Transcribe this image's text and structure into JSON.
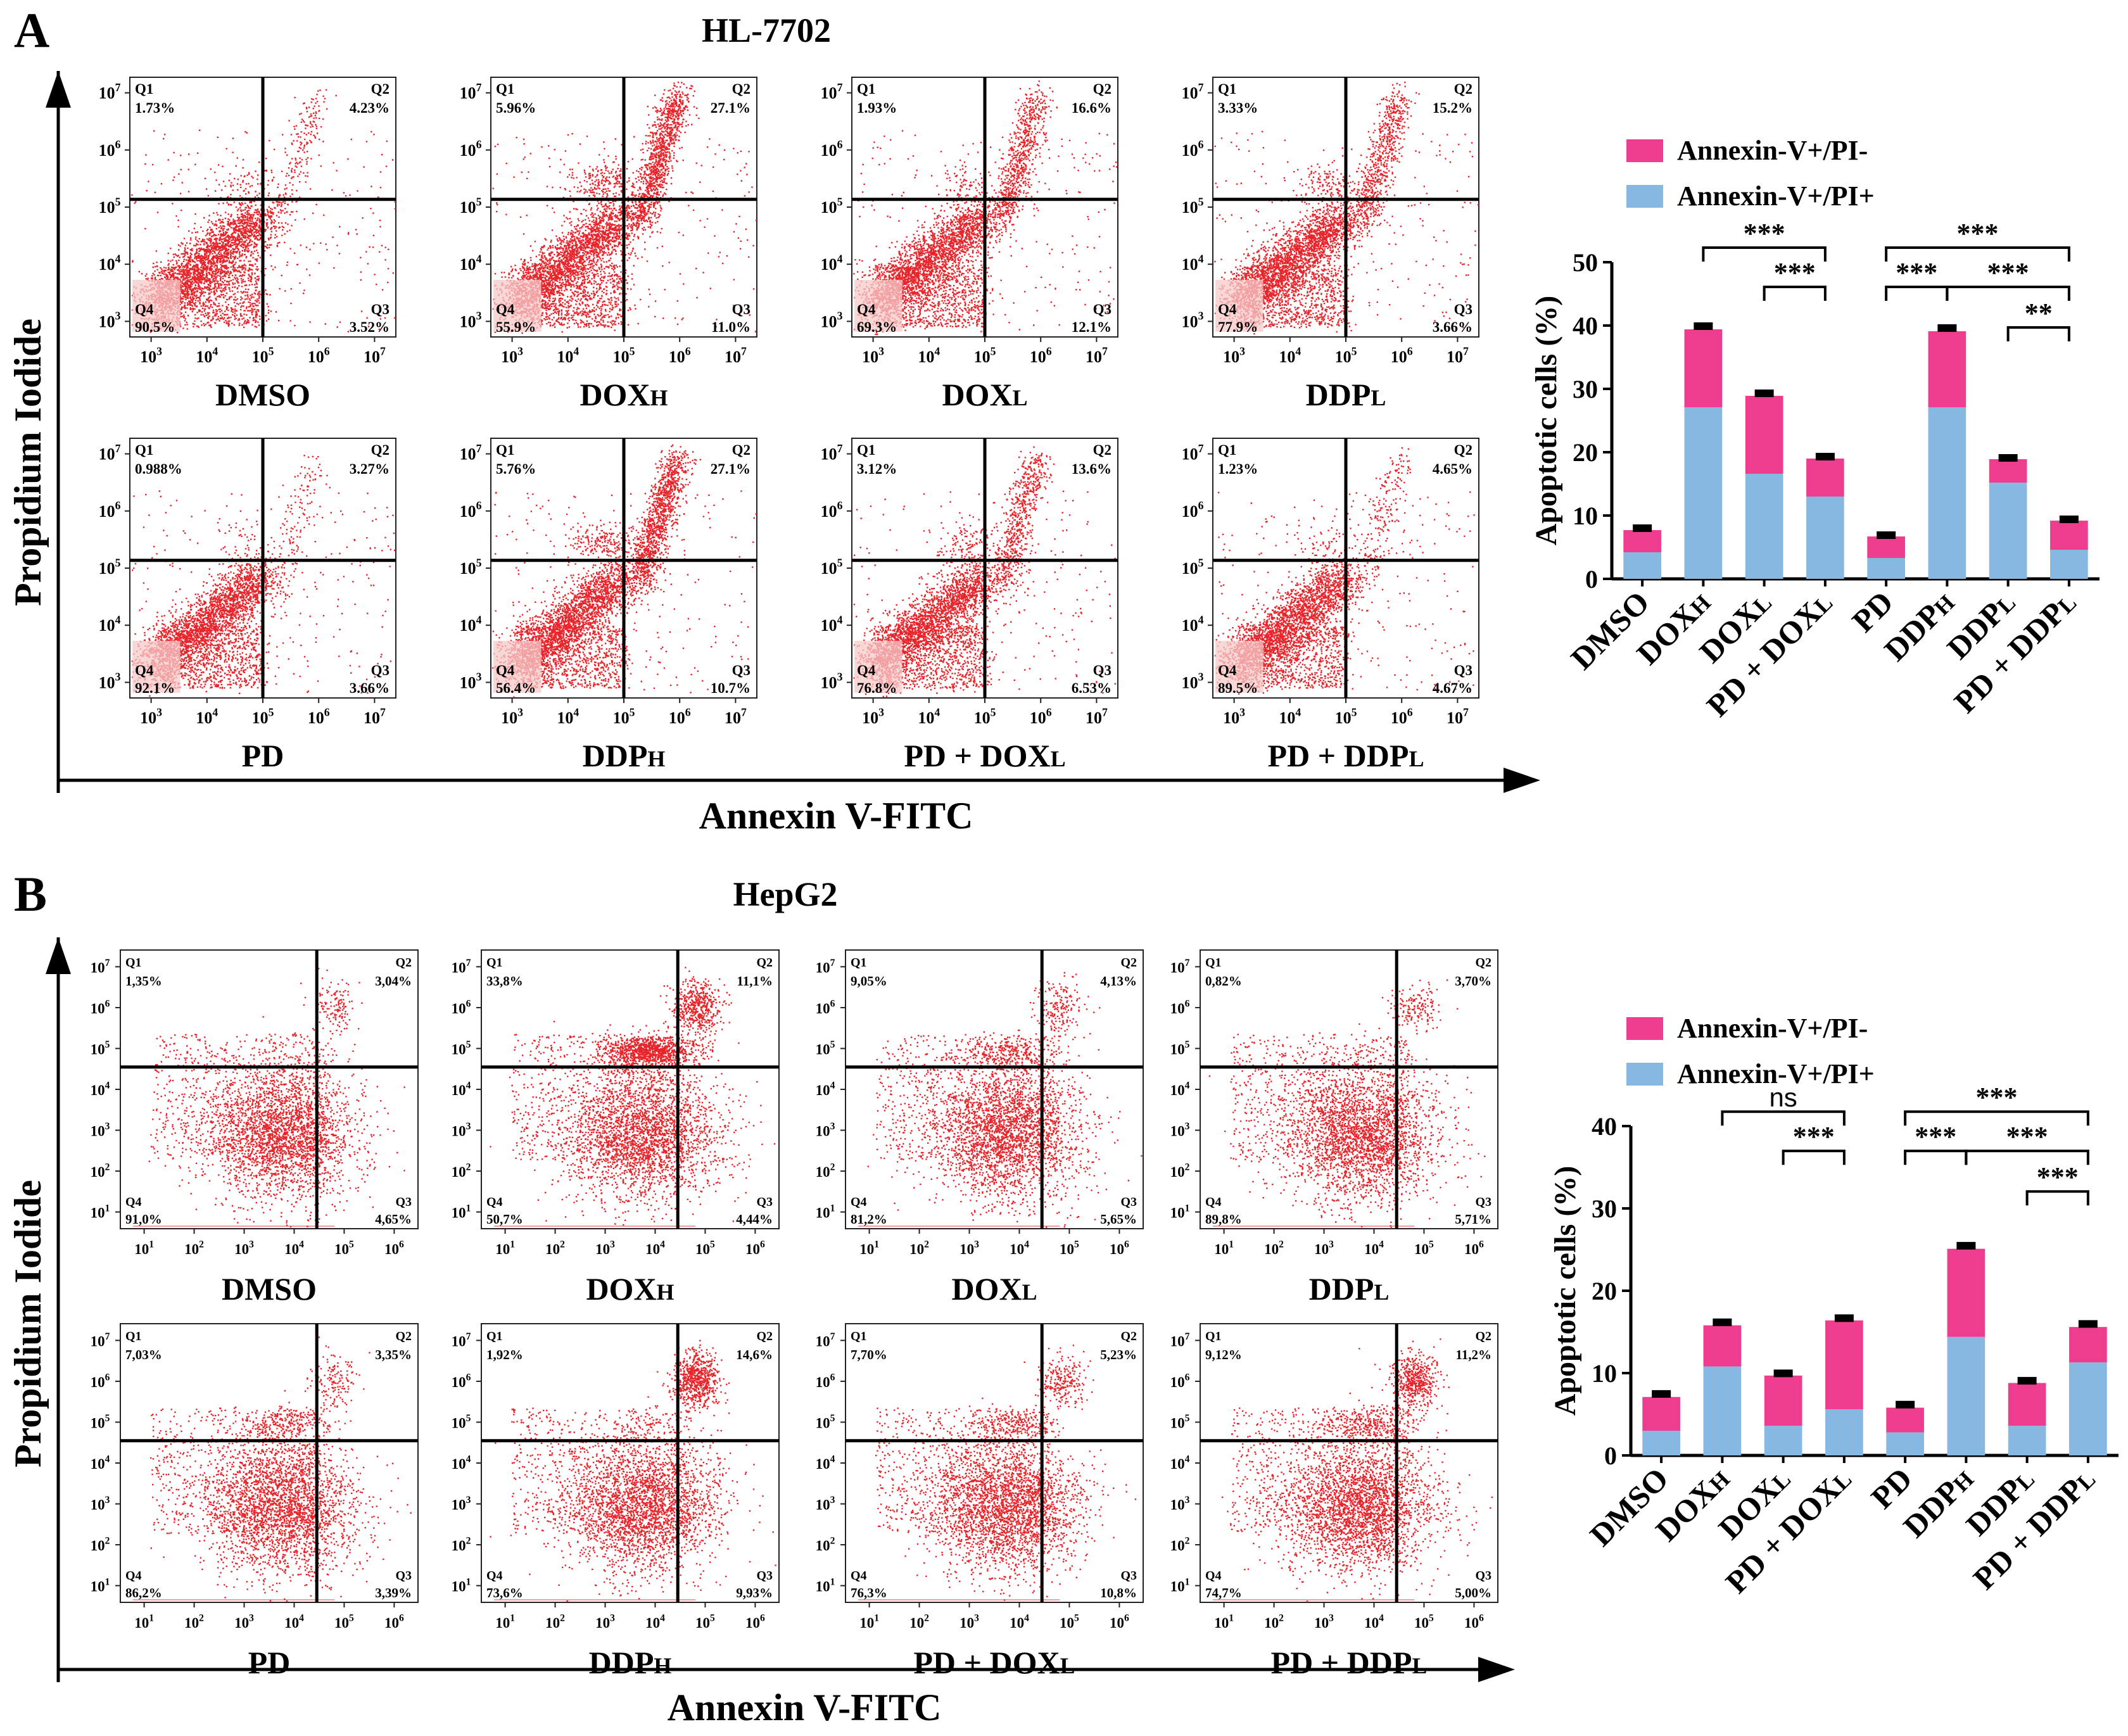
{
  "chart_data": [
    {
      "panel_label": "A",
      "title": "HL-7702",
      "xlabel": "Annexin V-FITC",
      "ylabel": "Propidium Iodide",
      "flow_plots": [
        {
          "label": "DMSO",
          "label_main": "DMSO",
          "label_sub": "",
          "quadrants": {
            "Q1": "1.73%",
            "Q2": "4.23%",
            "Q3": "3.52%",
            "Q4": "90.5%"
          }
        },
        {
          "label": "DOXH",
          "label_main": "DOX",
          "label_sub": "H",
          "quadrants": {
            "Q1": "5.96%",
            "Q2": "27.1%",
            "Q3": "11.0%",
            "Q4": "55.9%"
          }
        },
        {
          "label": "DOXL",
          "label_main": "DOX",
          "label_sub": "L",
          "quadrants": {
            "Q1": "1.93%",
            "Q2": "16.6%",
            "Q3": "12.1%",
            "Q4": "69.3%"
          }
        },
        {
          "label": "DDPL",
          "label_main": "DDP",
          "label_sub": "L",
          "quadrants": {
            "Q1": "3.33%",
            "Q2": "15.2%",
            "Q3": "3.66%",
            "Q4": "77.9%"
          }
        },
        {
          "label": "PD",
          "label_main": "PD",
          "label_sub": "",
          "quadrants": {
            "Q1": "0.988%",
            "Q2": "3.27%",
            "Q3": "3.66%",
            "Q4": "92.1%"
          }
        },
        {
          "label": "DDPH",
          "label_main": "DDP",
          "label_sub": "H",
          "quadrants": {
            "Q1": "5.76%",
            "Q2": "27.1%",
            "Q3": "10.7%",
            "Q4": "56.4%"
          }
        },
        {
          "label": "PD + DOXL",
          "label_main": "PD + DOX",
          "label_sub": "L",
          "quadrants": {
            "Q1": "3.12%",
            "Q2": "13.6%",
            "Q3": "6.53%",
            "Q4": "76.8%"
          }
        },
        {
          "label": "PD + DDPL",
          "label_main": "PD + DDP",
          "label_sub": "L",
          "quadrants": {
            "Q1": "1.23%",
            "Q2": "4.65%",
            "Q3": "4.67%",
            "Q4": "89.5%"
          }
        }
      ],
      "flow_axis": {
        "x_ticks": [
          "10^3",
          "10^4",
          "10^5",
          "10^6",
          "10^7"
        ],
        "y_ticks": [
          "10^3",
          "10^4",
          "10^5",
          "10^6",
          "10^7"
        ]
      },
      "bar_chart": {
        "type": "bar",
        "stacked": true,
        "ylabel": "Apoptotic cells (%)",
        "ylim": [
          0,
          50
        ],
        "yticks": [
          0,
          10,
          20,
          30,
          40,
          50
        ],
        "categories": [
          {
            "main": "DMSO",
            "sub": ""
          },
          {
            "main": "DOX",
            "sub": "H"
          },
          {
            "main": "DOX",
            "sub": "L"
          },
          {
            "main": "PD + DOX",
            "sub": "L"
          },
          {
            "main": "PD",
            "sub": ""
          },
          {
            "main": "DDP",
            "sub": "H"
          },
          {
            "main": "DDP",
            "sub": "L"
          },
          {
            "main": "PD + DDP",
            "sub": "L"
          }
        ],
        "series": [
          {
            "name": "Annexin-V+/PI+",
            "color": "#86b8e2",
            "values": [
              4.2,
              27.1,
              16.6,
              13.0,
              3.3,
              27.1,
              15.2,
              4.6
            ]
          },
          {
            "name": "Annexin-V+/PI-",
            "color": "#ee3d8f",
            "values": [
              3.5,
              12.3,
              12.3,
              6.0,
              3.4,
              12.0,
              3.7,
              4.6
            ]
          }
        ],
        "error": [
          0.6,
          0.8,
          0.7,
          0.6,
          0.5,
          0.8,
          0.5,
          0.5
        ],
        "legend": [
          "Annexin-V+/PI-",
          "Annexin-V+/PI+"
        ],
        "significance": [
          {
            "from": 1,
            "to": 3,
            "label": "***",
            "level": 0
          },
          {
            "from": 2,
            "to": 3,
            "label": "***",
            "level": 1
          },
          {
            "from": 4,
            "to": 7,
            "label": "***",
            "level": 0
          },
          {
            "from": 4,
            "to": 5,
            "label": "***",
            "level": 1
          },
          {
            "from": 5,
            "to": 7,
            "label": "***",
            "level": 1
          },
          {
            "from": 6,
            "to": 7,
            "label": "**",
            "level": 2
          }
        ]
      }
    },
    {
      "panel_label": "B",
      "title": "HepG2",
      "xlabel": "Annexin V-FITC",
      "ylabel": "Propidium Iodide",
      "flow_plots": [
        {
          "label": "DMSO",
          "label_main": "DMSO",
          "label_sub": "",
          "quadrants": {
            "Q1": "1,35%",
            "Q2": "3,04%",
            "Q3": "4,65%",
            "Q4": "91,0%"
          }
        },
        {
          "label": "DOXH",
          "label_main": "DOX",
          "label_sub": "H",
          "quadrants": {
            "Q1": "33,8%",
            "Q2": "11,1%",
            "Q3": "4,44%",
            "Q4": "50,7%"
          }
        },
        {
          "label": "DOXL",
          "label_main": "DOX",
          "label_sub": "L",
          "quadrants": {
            "Q1": "9,05%",
            "Q2": "4,13%",
            "Q3": "5,65%",
            "Q4": "81,2%"
          }
        },
        {
          "label": "DDPL",
          "label_main": "DDP",
          "label_sub": "L",
          "quadrants": {
            "Q1": "0,82%",
            "Q2": "3,70%",
            "Q3": "5,71%",
            "Q4": "89,8%"
          }
        },
        {
          "label": "PD",
          "label_main": "PD",
          "label_sub": "",
          "quadrants": {
            "Q1": "7,03%",
            "Q2": "3,35%",
            "Q3": "3,39%",
            "Q4": "86,2%"
          }
        },
        {
          "label": "DDPH",
          "label_main": "DDP",
          "label_sub": "H",
          "quadrants": {
            "Q1": "1,92%",
            "Q2": "14,6%",
            "Q3": "9,93%",
            "Q4": "73,6%"
          }
        },
        {
          "label": "PD + DOXL",
          "label_main": "PD + DOX",
          "label_sub": "L",
          "quadrants": {
            "Q1": "7,70%",
            "Q2": "5,23%",
            "Q3": "10,8%",
            "Q4": "76,3%"
          }
        },
        {
          "label": "PD + DDPL",
          "label_main": "PD + DDP",
          "label_sub": "L",
          "quadrants": {
            "Q1": "9,12%",
            "Q2": "11,2%",
            "Q3": "5,00%",
            "Q4": "74,7%"
          }
        }
      ],
      "flow_axis": {
        "x_ticks": [
          "10^1",
          "10^2",
          "10^3",
          "10^4",
          "10^5",
          "10^6"
        ],
        "y_ticks": [
          "10^1",
          "10^2",
          "10^3",
          "10^4",
          "10^5",
          "10^6",
          "10^7"
        ]
      },
      "bar_chart": {
        "type": "bar",
        "stacked": true,
        "ylabel": "Apoptotic cells (%)",
        "ylim": [
          0,
          40
        ],
        "yticks": [
          0,
          10,
          20,
          30,
          40
        ],
        "categories": [
          {
            "main": "DMSO",
            "sub": ""
          },
          {
            "main": "DOX",
            "sub": "H"
          },
          {
            "main": "DOX",
            "sub": "L"
          },
          {
            "main": "PD + DOX",
            "sub": "L"
          },
          {
            "main": "PD",
            "sub": ""
          },
          {
            "main": "DDP",
            "sub": "H"
          },
          {
            "main": "DDP",
            "sub": "L"
          },
          {
            "main": "PD + DDP",
            "sub": "L"
          }
        ],
        "series": [
          {
            "name": "Annexin-V+/PI+",
            "color": "#86b8e2",
            "values": [
              3.0,
              10.8,
              3.6,
              5.6,
              2.8,
              14.4,
              3.6,
              11.3
            ]
          },
          {
            "name": "Annexin-V+/PI-",
            "color": "#ee3d8f",
            "values": [
              4.1,
              5.0,
              6.1,
              10.8,
              3.0,
              10.7,
              5.2,
              4.3
            ]
          }
        ],
        "error": [
          0.6,
          0.6,
          0.5,
          0.5,
          0.6,
          0.6,
          0.5,
          0.6
        ],
        "legend": [
          "Annexin-V+/PI-",
          "Annexin-V+/PI+"
        ],
        "significance": [
          {
            "from": 1,
            "to": 3,
            "label": "ns",
            "level": 0
          },
          {
            "from": 2,
            "to": 3,
            "label": "***",
            "level": 1
          },
          {
            "from": 4,
            "to": 7,
            "label": "***",
            "level": 0
          },
          {
            "from": 4,
            "to": 5,
            "label": "***",
            "level": 1
          },
          {
            "from": 5,
            "to": 7,
            "label": "***",
            "level": 1
          },
          {
            "from": 6,
            "to": 7,
            "label": "***",
            "level": 2
          }
        ]
      }
    }
  ]
}
